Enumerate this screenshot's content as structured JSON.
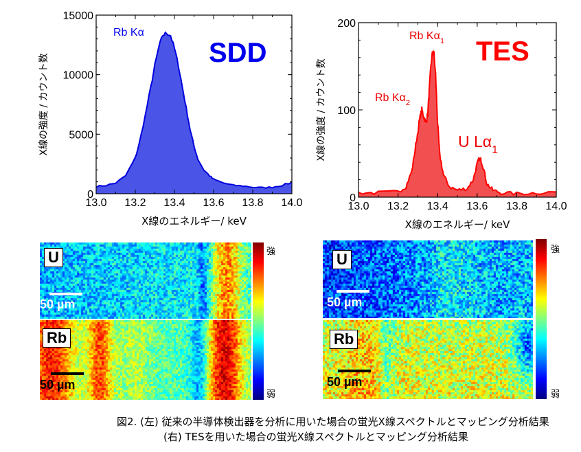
{
  "charts": [
    {
      "id": "sdd",
      "title": "SDD",
      "title_color": "#0000ee",
      "fill_color": "#4a55e8",
      "line_color": "#0000dd",
      "ylabel": "X線の強度 / カウント数",
      "xlabel": "X線のエネルギー/ keV",
      "peak_label": "Rb Kα",
      "label_color": "#0000ee",
      "xlim": [
        13.0,
        14.0
      ],
      "ylim": [
        0,
        15000
      ],
      "yticks": [
        "0",
        "5000",
        "10000",
        "15000"
      ],
      "xticks": [
        "13.0",
        "13.2",
        "13.4",
        "13.6",
        "13.8",
        "14.0"
      ]
    },
    {
      "id": "tes",
      "title": "TES",
      "title_color": "#ff0000",
      "fill_color": "#f25050",
      "line_color": "#ff0000",
      "ylabel": "X線の強度 / カウント数",
      "xlabel": "X線のエネルギー/ keV",
      "peak_labels": {
        "ka1": "Rb Kα1",
        "ka2": "Rb Kα2",
        "ula1": "U Lα1"
      },
      "label_color": "#ee0000",
      "xlim": [
        13.0,
        14.0
      ],
      "ylim": [
        0,
        200
      ],
      "yticks": [
        "0",
        "100",
        "200"
      ],
      "xticks": [
        "13.0",
        "13.2",
        "13.4",
        "13.6",
        "13.8",
        "14.0"
      ]
    }
  ],
  "chart_data": [
    {
      "type": "area",
      "title": "SDD",
      "xlabel": "X線のエネルギー/ keV",
      "ylabel": "X線の強度 / カウント数",
      "xlim": [
        13.0,
        14.0
      ],
      "ylim": [
        0,
        15000
      ],
      "series": [
        {
          "name": "Rb Kα",
          "x": [
            13.0,
            13.05,
            13.1,
            13.15,
            13.2,
            13.22,
            13.25,
            13.28,
            13.3,
            13.32,
            13.34,
            13.36,
            13.38,
            13.4,
            13.42,
            13.44,
            13.46,
            13.48,
            13.5,
            13.52,
            13.55,
            13.58,
            13.6,
            13.65,
            13.7,
            13.75,
            13.8,
            13.85,
            13.9,
            13.95,
            14.0
          ],
          "values": [
            600,
            700,
            900,
            1500,
            3000,
            4200,
            6500,
            9000,
            10800,
            12300,
            13300,
            13500,
            13300,
            12200,
            10800,
            9000,
            7200,
            5400,
            4000,
            2900,
            2000,
            1500,
            1200,
            900,
            700,
            650,
            550,
            500,
            550,
            700,
            950
          ]
        }
      ]
    },
    {
      "type": "area",
      "title": "TES",
      "xlabel": "X線のエネルギー/ keV",
      "ylabel": "X線の強度 / カウント数",
      "xlim": [
        13.0,
        14.0
      ],
      "ylim": [
        0,
        200
      ],
      "series": [
        {
          "name": "TES",
          "x": [
            13.0,
            13.1,
            13.2,
            13.24,
            13.27,
            13.29,
            13.31,
            13.32,
            13.33,
            13.34,
            13.35,
            13.36,
            13.37,
            13.38,
            13.39,
            13.4,
            13.41,
            13.43,
            13.46,
            13.5,
            13.55,
            13.58,
            13.6,
            13.61,
            13.62,
            13.63,
            13.65,
            13.68,
            13.72,
            13.8,
            13.9,
            14.0
          ],
          "values": [
            5,
            5,
            6,
            12,
            30,
            60,
            90,
            100,
            93,
            85,
            95,
            130,
            160,
            168,
            140,
            85,
            50,
            25,
            12,
            8,
            10,
            20,
            38,
            44,
            42,
            35,
            15,
            8,
            5,
            4,
            5,
            6
          ]
        }
      ]
    }
  ],
  "maps": {
    "sdd_u": {
      "label": "U",
      "scale": "50 µm",
      "scalebar_color": "#ffffff",
      "scaletext_color": "#ffffff"
    },
    "sdd_rb": {
      "label": "Rb",
      "scale": "50 µm",
      "scalebar_color": "#000000",
      "scaletext_color": "#000000"
    },
    "tes_u": {
      "label": "U",
      "scale": "50 µm",
      "scalebar_color": "#ffffff",
      "scaletext_color": "#ffffff"
    },
    "tes_rb": {
      "label": "Rb",
      "scale": "50 µm",
      "scalebar_color": "#000000",
      "scaletext_color": "#000000"
    }
  },
  "colorbar": {
    "high": "強",
    "low": "弱"
  },
  "caption": {
    "line1": "図2. (左) 従来の半導体検出器を分析に用いた場合の蛍光X線スペクトルとマッピング分析結果",
    "line2": "(右) TESを用いた場合の蛍光X線スペクトルとマッピング分析結果"
  }
}
